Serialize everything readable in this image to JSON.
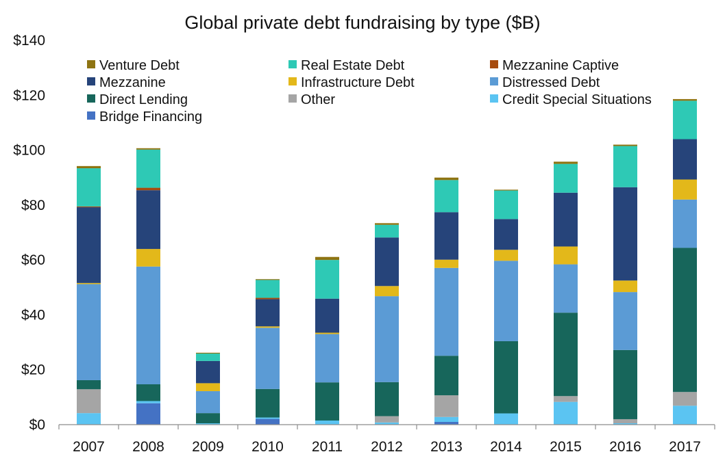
{
  "chart_data": {
    "type": "bar",
    "stacked": true,
    "title": "Global private debt fundraising by type ($B)",
    "xlabel": "",
    "ylabel": "",
    "ylim": [
      0,
      140
    ],
    "y_ticks": [
      0,
      20,
      40,
      60,
      80,
      100,
      120,
      140
    ],
    "y_tick_labels": [
      "$0",
      "$20",
      "$40",
      "$60",
      "$80",
      "$100",
      "$120",
      "$140"
    ],
    "grid": false,
    "legend_position": "top",
    "categories": [
      "2007",
      "2008",
      "2009",
      "2010",
      "2011",
      "2012",
      "2013",
      "2014",
      "2015",
      "2016",
      "2017"
    ],
    "series": [
      {
        "name": "Bridge Financing",
        "color": "#4472C4",
        "values": [
          0,
          7.8,
          0,
          2.1,
          0,
          0,
          1.0,
          0,
          0,
          0,
          0
        ]
      },
      {
        "name": "Credit Special Situations",
        "color": "#5BC4F2",
        "values": [
          4.2,
          0.8,
          0.5,
          0.5,
          1.5,
          0.8,
          1.8,
          4.1,
          8.3,
          0.5,
          6.9
        ]
      },
      {
        "name": "Other",
        "color": "#A5A5A5",
        "values": [
          8.7,
          0,
          0,
          0,
          0,
          2.3,
          7.9,
          0,
          2.1,
          1.5,
          5.0
        ]
      },
      {
        "name": "Direct Lending",
        "color": "#17665B",
        "values": [
          3.3,
          6.1,
          3.7,
          10.4,
          13.9,
          12.4,
          14.4,
          26.3,
          30.4,
          25.2,
          52.5
        ]
      },
      {
        "name": "Distressed Debt",
        "color": "#5B9BD5",
        "values": [
          35.0,
          42.9,
          8.0,
          22.3,
          17.6,
          31.3,
          32.0,
          29.3,
          17.6,
          21.1,
          17.6
        ]
      },
      {
        "name": "Infrastructure Debt",
        "color": "#E3B81A",
        "values": [
          0.4,
          6.4,
          2.9,
          0.5,
          0.5,
          3.7,
          3.0,
          4.0,
          6.5,
          4.2,
          7.3
        ]
      },
      {
        "name": "Mezzanine",
        "color": "#26447A",
        "values": [
          27.6,
          21.4,
          8.1,
          9.9,
          12.4,
          17.7,
          17.3,
          11.2,
          19.6,
          34.0,
          14.7
        ]
      },
      {
        "name": "Mezzanine Captive",
        "color": "#A64B0E",
        "values": [
          0.3,
          0.9,
          0,
          0.5,
          0,
          0,
          0,
          0,
          0,
          0,
          0
        ]
      },
      {
        "name": "Real Estate Debt",
        "color": "#2EC9B5",
        "values": [
          13.9,
          13.9,
          2.7,
          6.5,
          14.1,
          4.6,
          11.7,
          10.4,
          10.5,
          15.0,
          14.0
        ]
      },
      {
        "name": "Venture Debt",
        "color": "#8E7412",
        "values": [
          0.8,
          0.5,
          0.3,
          0.3,
          1.1,
          0.6,
          0.9,
          0.3,
          0.8,
          0.5,
          0.6
        ]
      }
    ],
    "legend_order": [
      "Venture Debt",
      "Real Estate Debt",
      "Mezzanine Captive",
      "Mezzanine",
      "Infrastructure Debt",
      "Distressed Debt",
      "Direct Lending",
      "Other",
      "Credit Special Situations",
      "Bridge Financing"
    ]
  }
}
